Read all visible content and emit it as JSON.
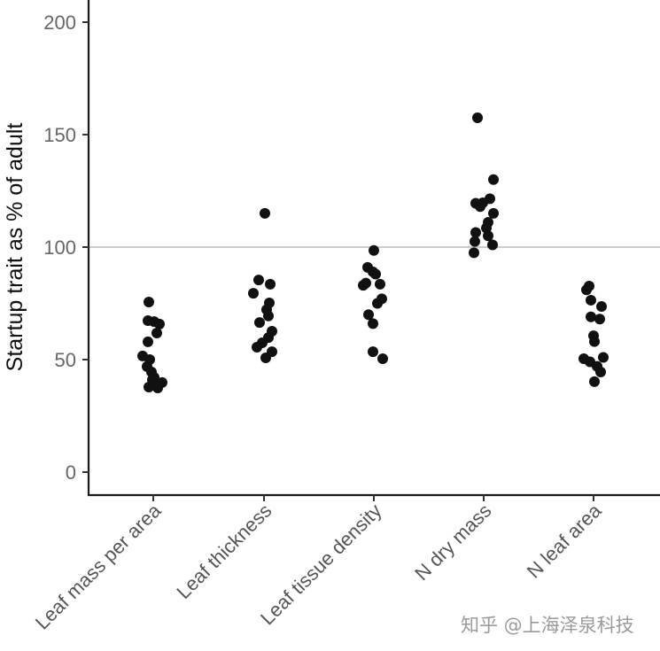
{
  "chart_data": {
    "type": "scatter",
    "subtype": "jittered strip plot",
    "title": "",
    "xlabel": "",
    "ylabel": "Startup trait as % of adult",
    "ylim": [
      -10,
      210
    ],
    "yticks": [
      0,
      50,
      100,
      150,
      200
    ],
    "reference_line": {
      "y": 100,
      "color": "#cccccc"
    },
    "grid": false,
    "legend": null,
    "point_color": "#111111",
    "categories": [
      "Leaf mass per area",
      "Leaf thickness",
      "Leaf tissue density",
      "N dry mass",
      "N leaf area"
    ],
    "series": [
      {
        "name": "Leaf mass per area",
        "points": [
          {
            "jitter": -5,
            "y": 75.6
          },
          {
            "jitter": -6,
            "y": 67.3
          },
          {
            "jitter": 1,
            "y": 66.9
          },
          {
            "jitter": 7,
            "y": 65.8
          },
          {
            "jitter": 4,
            "y": 61.8
          },
          {
            "jitter": -6,
            "y": 57.9
          },
          {
            "jitter": -12,
            "y": 51.6
          },
          {
            "jitter": -4,
            "y": 50.0
          },
          {
            "jitter": -7,
            "y": 46.9
          },
          {
            "jitter": -2,
            "y": 44.5
          },
          {
            "jitter": 1,
            "y": 42.1
          },
          {
            "jitter": 10,
            "y": 39.8
          },
          {
            "jitter": -1,
            "y": 41.0
          },
          {
            "jitter": -5,
            "y": 37.8
          },
          {
            "jitter": 5,
            "y": 37.4
          }
        ]
      },
      {
        "name": "Leaf thickness",
        "points": [
          {
            "jitter": 1,
            "y": 115.0
          },
          {
            "jitter": -6,
            "y": 85.4
          },
          {
            "jitter": 7,
            "y": 83.5
          },
          {
            "jitter": -12,
            "y": 79.5
          },
          {
            "jitter": 6,
            "y": 75.2
          },
          {
            "jitter": 3,
            "y": 72.2
          },
          {
            "jitter": 5,
            "y": 69.4
          },
          {
            "jitter": -5,
            "y": 66.5
          },
          {
            "jitter": 9,
            "y": 62.6
          },
          {
            "jitter": 5,
            "y": 59.8
          },
          {
            "jitter": -2,
            "y": 57.5
          },
          {
            "jitter": -8,
            "y": 55.5
          },
          {
            "jitter": 9,
            "y": 53.5
          },
          {
            "jitter": 2,
            "y": 50.8
          }
        ]
      },
      {
        "name": "Leaf tissue density",
        "points": [
          {
            "jitter": 0,
            "y": 98.5
          },
          {
            "jitter": -7,
            "y": 91.0
          },
          {
            "jitter": -1,
            "y": 89.0
          },
          {
            "jitter": 2,
            "y": 88.0
          },
          {
            "jitter": -9,
            "y": 84.0
          },
          {
            "jitter": -12,
            "y": 83.0
          },
          {
            "jitter": 7,
            "y": 83.5
          },
          {
            "jitter": 9,
            "y": 77.0
          },
          {
            "jitter": 4,
            "y": 75.0
          },
          {
            "jitter": -6,
            "y": 70.0
          },
          {
            "jitter": -1,
            "y": 66.0
          },
          {
            "jitter": -1,
            "y": 53.5
          },
          {
            "jitter": 10,
            "y": 50.4
          }
        ]
      },
      {
        "name": "N dry mass",
        "points": [
          {
            "jitter": -7,
            "y": 157.5
          },
          {
            "jitter": 11,
            "y": 130.0
          },
          {
            "jitter": -9,
            "y": 119.5
          },
          {
            "jitter": -1,
            "y": 119.7
          },
          {
            "jitter": 7,
            "y": 121.5
          },
          {
            "jitter": -4,
            "y": 118.0
          },
          {
            "jitter": 11,
            "y": 115.0
          },
          {
            "jitter": 5,
            "y": 111.0
          },
          {
            "jitter": 3,
            "y": 108.5
          },
          {
            "jitter": -9,
            "y": 106.5
          },
          {
            "jitter": 5,
            "y": 105.0
          },
          {
            "jitter": -10,
            "y": 102.5
          },
          {
            "jitter": 10,
            "y": 101.0
          },
          {
            "jitter": -11,
            "y": 97.5
          }
        ]
      },
      {
        "name": "N leaf area",
        "points": [
          {
            "jitter": -5,
            "y": 82.7
          },
          {
            "jitter": -8,
            "y": 81.0
          },
          {
            "jitter": -3,
            "y": 76.4
          },
          {
            "jitter": 9,
            "y": 73.6
          },
          {
            "jitter": -3,
            "y": 69.0
          },
          {
            "jitter": 7,
            "y": 68.0
          },
          {
            "jitter": 0,
            "y": 60.6
          },
          {
            "jitter": 1,
            "y": 58.0
          },
          {
            "jitter": -11,
            "y": 50.4
          },
          {
            "jitter": -4,
            "y": 49.0
          },
          {
            "jitter": 11,
            "y": 51.0
          },
          {
            "jitter": 4,
            "y": 47.0
          },
          {
            "jitter": 8,
            "y": 44.5
          },
          {
            "jitter": 1,
            "y": 40.2
          }
        ]
      }
    ]
  },
  "watermark": "知乎 @上海泽泉科技"
}
